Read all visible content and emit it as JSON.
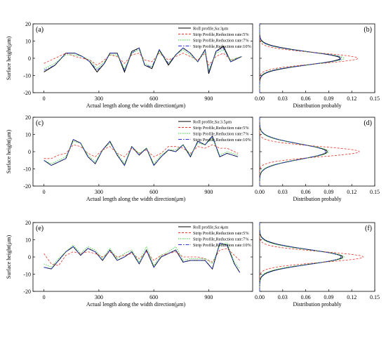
{
  "colors": {
    "roll": "#000000",
    "r5": "#e8352b",
    "r7": "#2bcf2b",
    "r10": "#2a36d6"
  },
  "chart_data": [
    {
      "panel": "(a)",
      "type": "line",
      "ylabel": "Surface height(μm)",
      "xlabel": "Actual length along the width direction(μm)",
      "xlim": [
        -60,
        1140
      ],
      "ylim": [
        -20,
        20
      ],
      "xticks": [
        "0",
        "300",
        "600",
        "900"
      ],
      "yticks": [
        "-20",
        "-10",
        "0",
        "10",
        "20"
      ],
      "legend_position": "top-right",
      "series": [
        {
          "name": "Roll profile,Sa:3μm",
          "key": "roll",
          "x": [
            0,
            60,
            120,
            170,
            210,
            250,
            290,
            330,
            360,
            400,
            440,
            480,
            520,
            550,
            590,
            630,
            680,
            720,
            760,
            800,
            840,
            880,
            900,
            940,
            980,
            1020,
            1080
          ],
          "y": [
            -8,
            -4,
            3,
            3,
            1,
            -2,
            -8,
            -3,
            3,
            3,
            -8,
            4,
            6,
            -4,
            -6,
            5,
            -4,
            2,
            6,
            3,
            -2,
            5,
            -9,
            4,
            7,
            -2,
            1
          ]
        },
        {
          "name": "Strip Profile,Reduction rate:5%",
          "key": "r5",
          "x": [
            0,
            60,
            120,
            170,
            210,
            250,
            290,
            330,
            360,
            400,
            440,
            480,
            520,
            550,
            590,
            630,
            680,
            720,
            760,
            800,
            840,
            880,
            900,
            940,
            980,
            1020,
            1080
          ],
          "y": [
            -3,
            0,
            3,
            1,
            0,
            -1,
            -4,
            -1,
            2,
            1,
            -3,
            2,
            3,
            -1,
            -2,
            3,
            -1,
            1,
            3,
            1,
            -1,
            3,
            -4,
            1,
            3,
            -1,
            1
          ]
        },
        {
          "name": "Strip Profile,Reduction rate:7%",
          "key": "r7",
          "x": [
            0,
            60,
            120,
            170,
            210,
            250,
            290,
            330,
            360,
            400,
            440,
            480,
            520,
            550,
            590,
            630,
            680,
            720,
            760,
            800,
            840,
            880,
            900,
            940,
            980,
            1020,
            1080
          ],
          "y": [
            -6,
            -3,
            2,
            2,
            1,
            -1,
            -6,
            -2,
            2,
            2,
            -6,
            3,
            5,
            -3,
            -5,
            4,
            -3,
            2,
            5,
            2,
            -2,
            4,
            -7,
            3,
            5,
            -1,
            1
          ]
        },
        {
          "name": "Strip Profile,Reduction rate:10%",
          "key": "r10",
          "x": [
            0,
            60,
            120,
            170,
            210,
            250,
            290,
            330,
            360,
            400,
            440,
            480,
            520,
            550,
            590,
            630,
            680,
            720,
            760,
            800,
            840,
            880,
            900,
            940,
            980,
            1020,
            1080
          ],
          "y": [
            -7,
            -4,
            3,
            3,
            1,
            -2,
            -7,
            -3,
            3,
            3,
            -7,
            3,
            6,
            -4,
            -5,
            5,
            -3,
            2,
            6,
            3,
            -2,
            5,
            -8,
            4,
            6,
            -2,
            1
          ]
        }
      ]
    },
    {
      "panel": "(b)",
      "type": "line",
      "xlabel": "Distribution probably",
      "xlim": [
        0,
        0.15
      ],
      "ylim": [
        -20,
        20
      ],
      "xticks": [
        "0.00",
        "0.03",
        "0.06",
        "0.09",
        "0.12",
        "0.15"
      ],
      "series": [
        {
          "key": "roll",
          "peak": 0.105,
          "mean": 0,
          "sd": 3.8
        },
        {
          "key": "r5",
          "peak": 0.128,
          "mean": 0,
          "sd": 3.1
        },
        {
          "key": "r7",
          "peak": 0.11,
          "mean": 0,
          "sd": 3.6
        },
        {
          "key": "r10",
          "peak": 0.107,
          "mean": 0,
          "sd": 3.7
        }
      ]
    },
    {
      "panel": "(c)",
      "type": "line",
      "ylabel": "Surface height(μm)",
      "xlabel": "Actual length along the width direction(μm)",
      "xlim": [
        -60,
        1140
      ],
      "ylim": [
        -20,
        20
      ],
      "xticks": [
        "0",
        "300",
        "600",
        "900"
      ],
      "yticks": [
        "-20",
        "-10",
        "0",
        "10",
        "20"
      ],
      "legend_position": "top-right",
      "series": [
        {
          "name": "Roll profile,Sa:3.5μm",
          "key": "roll",
          "x": [
            0,
            40,
            80,
            120,
            160,
            200,
            240,
            280,
            320,
            360,
            400,
            440,
            480,
            520,
            560,
            600,
            640,
            680,
            720,
            760,
            800,
            840,
            880,
            920,
            960,
            1000,
            1060
          ],
          "y": [
            -5,
            -8,
            -6,
            -4,
            7,
            5,
            -3,
            -7,
            1,
            6,
            -2,
            -8,
            3,
            -2,
            2,
            -8,
            -3,
            1,
            0,
            4,
            -3,
            6,
            4,
            9,
            -3,
            -1,
            -3
          ]
        },
        {
          "name": "Strip Profile,Reduction rate:5%",
          "key": "r5",
          "x": [
            0,
            40,
            80,
            120,
            160,
            200,
            240,
            280,
            320,
            360,
            400,
            440,
            480,
            520,
            560,
            600,
            640,
            680,
            720,
            760,
            800,
            840,
            880,
            920,
            960,
            1000,
            1060
          ],
          "y": [
            -4,
            -4,
            -2,
            -1,
            4,
            3,
            -1,
            -3,
            1,
            3,
            -1,
            -3,
            2,
            -1,
            1,
            -3,
            -1,
            3,
            3,
            2,
            -1,
            3,
            2,
            4,
            2,
            2,
            -1
          ]
        },
        {
          "name": "Strip Profile,Reduction rate:7%",
          "key": "r7",
          "x": [
            0,
            40,
            80,
            120,
            160,
            200,
            240,
            280,
            320,
            360,
            400,
            440,
            480,
            520,
            560,
            600,
            640,
            680,
            720,
            760,
            800,
            840,
            880,
            920,
            960,
            1000,
            1060
          ],
          "y": [
            -5,
            -7,
            -5,
            -3,
            6,
            5,
            -2,
            -6,
            1,
            5,
            -1,
            -7,
            3,
            -1,
            2,
            -7,
            -2,
            1,
            1,
            4,
            -2,
            5,
            4,
            8,
            -2,
            0,
            -2
          ]
        },
        {
          "name": "Strip Profile,Reduction rate:10%",
          "key": "r10",
          "x": [
            0,
            40,
            80,
            120,
            160,
            200,
            240,
            280,
            320,
            360,
            400,
            440,
            480,
            520,
            560,
            600,
            640,
            680,
            720,
            760,
            800,
            840,
            880,
            920,
            960,
            1000,
            1060
          ],
          "y": [
            -5,
            -8,
            -6,
            -4,
            7,
            5,
            -3,
            -7,
            1,
            6,
            -2,
            -8,
            3,
            -2,
            2,
            -8,
            -3,
            1,
            0,
            4,
            -3,
            6,
            4,
            9,
            -3,
            -1,
            -3
          ]
        }
      ]
    },
    {
      "panel": "(d)",
      "type": "line",
      "xlabel": "Distribution probably",
      "xlim": [
        0,
        0.15
      ],
      "ylim": [
        -20,
        20
      ],
      "xticks": [
        "0.00",
        "0.03",
        "0.06",
        "0.09",
        "0.12",
        "0.15"
      ],
      "series": [
        {
          "key": "roll",
          "peak": 0.088,
          "mean": 0,
          "sd": 4.4
        },
        {
          "key": "r5",
          "peak": 0.13,
          "mean": 0,
          "sd": 3.0
        },
        {
          "key": "r7",
          "peak": 0.09,
          "mean": 0,
          "sd": 4.3
        },
        {
          "key": "r10",
          "peak": 0.086,
          "mean": 0,
          "sd": 4.5
        }
      ]
    },
    {
      "panel": "(e)",
      "type": "line",
      "ylabel": "Surface height(μm)",
      "xlabel": "Actual length along the width direction(μm)",
      "xlim": [
        -60,
        1140
      ],
      "ylim": [
        -20,
        20
      ],
      "xticks": [
        "0",
        "300",
        "600",
        "900"
      ],
      "yticks": [
        "-20",
        "-10",
        "0",
        "10",
        "20"
      ],
      "legend_position": "top-right",
      "series": [
        {
          "name": "Roll profile,Sa:4μm",
          "key": "roll",
          "x": [
            0,
            40,
            80,
            120,
            160,
            200,
            240,
            280,
            320,
            360,
            400,
            440,
            480,
            520,
            560,
            600,
            640,
            680,
            720,
            760,
            800,
            840,
            880,
            920,
            960,
            1000,
            1040,
            1070
          ],
          "y": [
            -6,
            -7,
            -2,
            3,
            6,
            1,
            5,
            3,
            -2,
            4,
            -2,
            0,
            3,
            -4,
            4,
            -6,
            0,
            2,
            4,
            -3,
            -2,
            -2,
            -2,
            -7,
            8,
            7,
            -4,
            -9
          ]
        },
        {
          "name": "Strip Profile,Reduction rate:5%",
          "key": "r5",
          "x": [
            0,
            40,
            80,
            120,
            160,
            200,
            240,
            280,
            320,
            360,
            400,
            440,
            480,
            520,
            560,
            600,
            640,
            680,
            720,
            760,
            800,
            840,
            880,
            920,
            960,
            1000,
            1040,
            1070
          ],
          "y": [
            2,
            -4,
            -5,
            1,
            3,
            2,
            3,
            2,
            0,
            3,
            0,
            1,
            2,
            -1,
            3,
            -2,
            1,
            2,
            3,
            0,
            0,
            0,
            -1,
            -3,
            4,
            5,
            1,
            -2
          ]
        },
        {
          "name": "Strip Profile,Reduction rate:7%",
          "key": "r7",
          "x": [
            0,
            40,
            80,
            120,
            160,
            200,
            240,
            280,
            320,
            360,
            400,
            440,
            480,
            520,
            560,
            600,
            640,
            680,
            720,
            760,
            800,
            840,
            880,
            920,
            960,
            1000,
            1040,
            1070
          ],
          "y": [
            -4,
            -6,
            -1,
            3,
            7,
            2,
            6,
            4,
            -1,
            5,
            -1,
            2,
            4,
            -3,
            6,
            -5,
            1,
            3,
            6,
            -2,
            -1,
            -1,
            -1,
            -4,
            7,
            8,
            -3,
            -7
          ]
        },
        {
          "name": "Strip Profile,Reduction rate:10%",
          "key": "r10",
          "x": [
            0,
            40,
            80,
            120,
            160,
            200,
            240,
            280,
            320,
            360,
            400,
            440,
            480,
            520,
            560,
            600,
            640,
            680,
            720,
            760,
            800,
            840,
            880,
            920,
            960,
            1000,
            1040,
            1070
          ],
          "y": [
            -6,
            -7,
            -2,
            3,
            6,
            1,
            5,
            3,
            -2,
            4,
            -2,
            0,
            3,
            -4,
            4,
            -6,
            0,
            2,
            4,
            -3,
            -2,
            -2,
            -2,
            -7,
            8,
            7,
            -4,
            -9
          ]
        }
      ]
    },
    {
      "panel": "(f)",
      "type": "line",
      "xlabel": "Distribution probably",
      "xlim": [
        0,
        0.15
      ],
      "ylim": [
        -20,
        20
      ],
      "xticks": [
        "0.00",
        "0.03",
        "0.06",
        "0.09",
        "0.12",
        "0.15"
      ],
      "series": [
        {
          "key": "roll",
          "peak": 0.108,
          "mean": 0,
          "sd": 4.2
        },
        {
          "key": "r5",
          "peak": 0.135,
          "mean": 0,
          "sd": 3.1
        },
        {
          "key": "r7",
          "peak": 0.11,
          "mean": 0,
          "sd": 4.0
        },
        {
          "key": "r10",
          "peak": 0.106,
          "mean": 0,
          "sd": 4.3
        }
      ]
    }
  ]
}
